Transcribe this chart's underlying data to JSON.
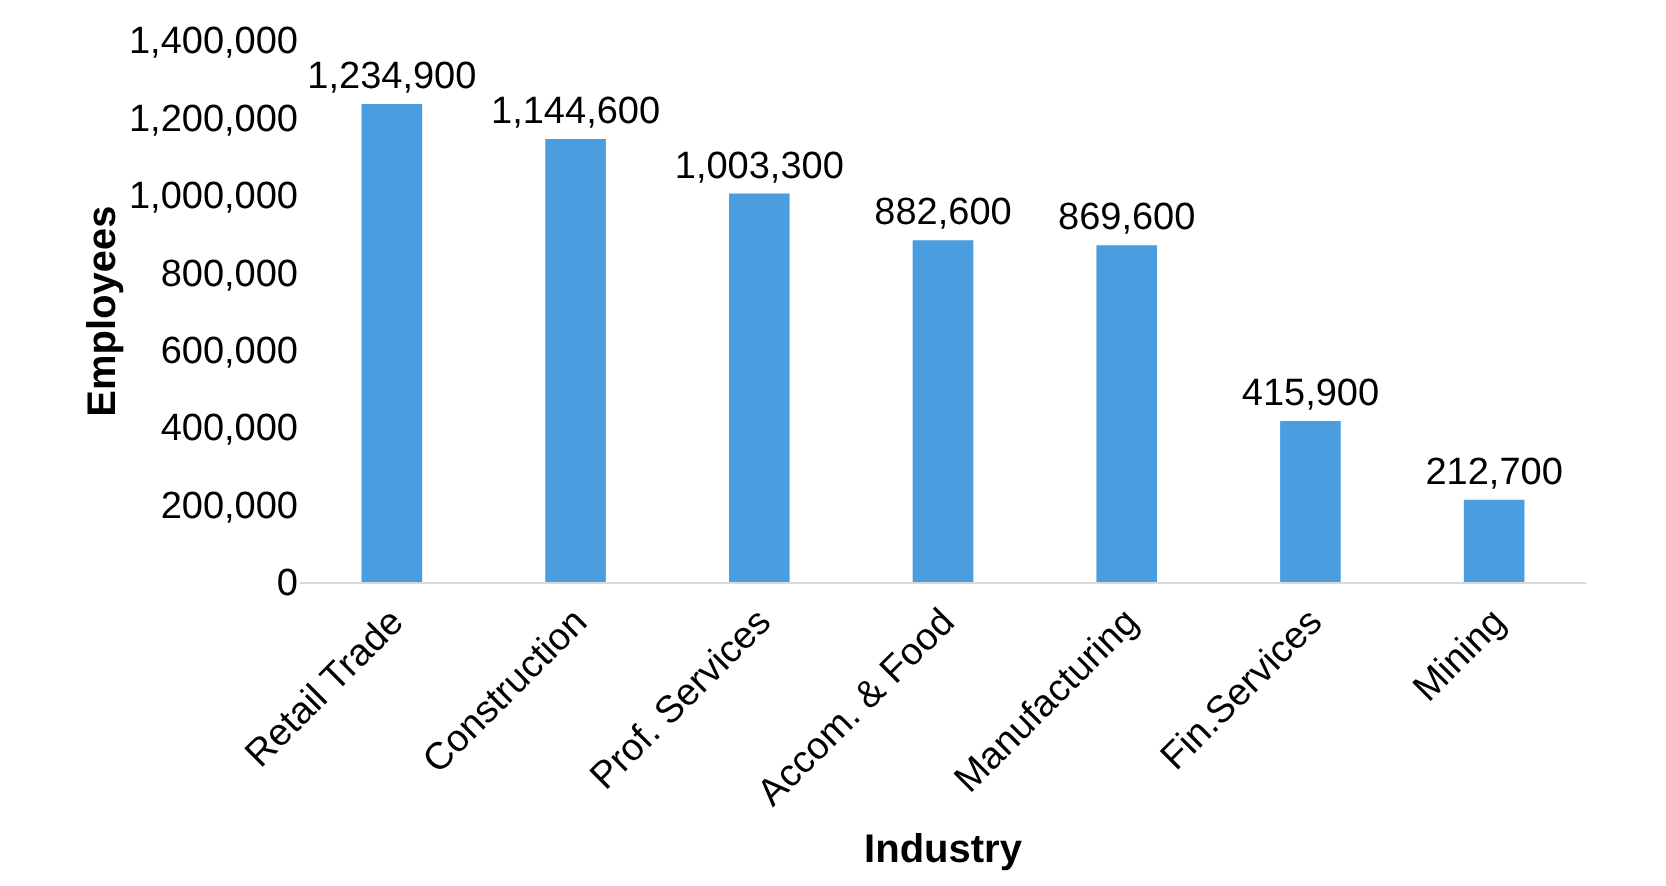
{
  "chart_data": {
    "type": "bar",
    "xlabel": "Industry",
    "ylabel": "Employees",
    "categories": [
      "Retail Trade",
      "Construction",
      "Prof. Services",
      "Accom. & Food",
      "Manufacturing",
      "Fin.Services",
      "Mining"
    ],
    "values": [
      1234900,
      1144600,
      1003300,
      882600,
      869600,
      415900,
      212700
    ],
    "color": "#4a9ddf",
    "ylim": [
      0,
      1400000
    ],
    "yticks": [
      0,
      {
        "value": 200000,
        "label": "200,000"
      },
      {
        "value": 400000,
        "label": "400,000"
      },
      {
        "value": 600000,
        "label": "600,000"
      },
      {
        "value": 800000,
        "label": "800,000"
      },
      {
        "value": 1000000,
        "label": "1,000,000"
      },
      {
        "value": 1200000,
        "label": "1,200,000"
      },
      {
        "value": 1400000,
        "label": "1,400,000"
      }
    ],
    "value_labels": [
      "1,234,900",
      "1,144,600",
      "1,003,300",
      "882,600",
      "869,600",
      "415,900",
      "212,700"
    ],
    "grid": false
  }
}
